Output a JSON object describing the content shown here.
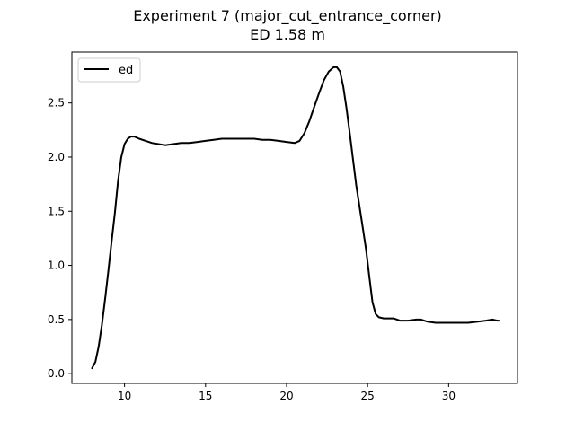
{
  "chart_data": {
    "type": "line",
    "title": "Experiment 7 (major_cut_entrance_corner)",
    "subtitle": "ED 1.58 m",
    "xlabel": "",
    "ylabel": "",
    "xlim": [
      6.75,
      34.25
    ],
    "ylim": [
      -0.09,
      2.97
    ],
    "xticks": [
      10,
      15,
      20,
      25,
      30
    ],
    "yticks": [
      0.0,
      0.5,
      1.0,
      1.5,
      2.0,
      2.5
    ],
    "xtick_labels": [
      "10",
      "15",
      "20",
      "25",
      "30"
    ],
    "ytick_labels": [
      "0.0",
      "0.5",
      "1.0",
      "1.5",
      "2.0",
      "2.5"
    ],
    "grid": false,
    "legend": {
      "position": "top-left",
      "entries": [
        "ed"
      ]
    },
    "series": [
      {
        "name": "ed",
        "color": "#000000",
        "points": [
          [
            8.0,
            0.05
          ],
          [
            8.2,
            0.11
          ],
          [
            8.4,
            0.25
          ],
          [
            8.6,
            0.45
          ],
          [
            8.8,
            0.69
          ],
          [
            9.0,
            0.95
          ],
          [
            9.2,
            1.22
          ],
          [
            9.4,
            1.48
          ],
          [
            9.6,
            1.78
          ],
          [
            9.8,
            2.0
          ],
          [
            10.0,
            2.12
          ],
          [
            10.2,
            2.17
          ],
          [
            10.4,
            2.19
          ],
          [
            10.6,
            2.19
          ],
          [
            10.9,
            2.17
          ],
          [
            11.3,
            2.15
          ],
          [
            11.7,
            2.13
          ],
          [
            12.1,
            2.12
          ],
          [
            12.5,
            2.11
          ],
          [
            13.0,
            2.12
          ],
          [
            13.5,
            2.13
          ],
          [
            14.0,
            2.13
          ],
          [
            14.5,
            2.14
          ],
          [
            15.0,
            2.15
          ],
          [
            15.5,
            2.16
          ],
          [
            16.0,
            2.17
          ],
          [
            16.5,
            2.17
          ],
          [
            17.0,
            2.17
          ],
          [
            17.5,
            2.17
          ],
          [
            18.0,
            2.17
          ],
          [
            18.5,
            2.16
          ],
          [
            19.0,
            2.16
          ],
          [
            19.5,
            2.15
          ],
          [
            20.0,
            2.14
          ],
          [
            20.5,
            2.13
          ],
          [
            20.8,
            2.15
          ],
          [
            21.1,
            2.22
          ],
          [
            21.4,
            2.33
          ],
          [
            21.7,
            2.46
          ],
          [
            22.0,
            2.59
          ],
          [
            22.3,
            2.71
          ],
          [
            22.6,
            2.79
          ],
          [
            22.9,
            2.83
          ],
          [
            23.1,
            2.83
          ],
          [
            23.3,
            2.79
          ],
          [
            23.5,
            2.65
          ],
          [
            23.7,
            2.45
          ],
          [
            23.9,
            2.22
          ],
          [
            24.1,
            1.98
          ],
          [
            24.3,
            1.74
          ],
          [
            24.6,
            1.45
          ],
          [
            24.9,
            1.15
          ],
          [
            25.1,
            0.9
          ],
          [
            25.3,
            0.66
          ],
          [
            25.5,
            0.55
          ],
          [
            25.7,
            0.52
          ],
          [
            26.0,
            0.51
          ],
          [
            26.3,
            0.51
          ],
          [
            26.6,
            0.51
          ],
          [
            27.0,
            0.49
          ],
          [
            27.5,
            0.49
          ],
          [
            28.0,
            0.5
          ],
          [
            28.3,
            0.5
          ],
          [
            28.7,
            0.48
          ],
          [
            29.2,
            0.47
          ],
          [
            29.8,
            0.47
          ],
          [
            30.5,
            0.47
          ],
          [
            31.2,
            0.47
          ],
          [
            31.8,
            0.48
          ],
          [
            32.3,
            0.49
          ],
          [
            32.7,
            0.5
          ],
          [
            33.0,
            0.49
          ],
          [
            33.1,
            0.49
          ]
        ]
      }
    ]
  }
}
